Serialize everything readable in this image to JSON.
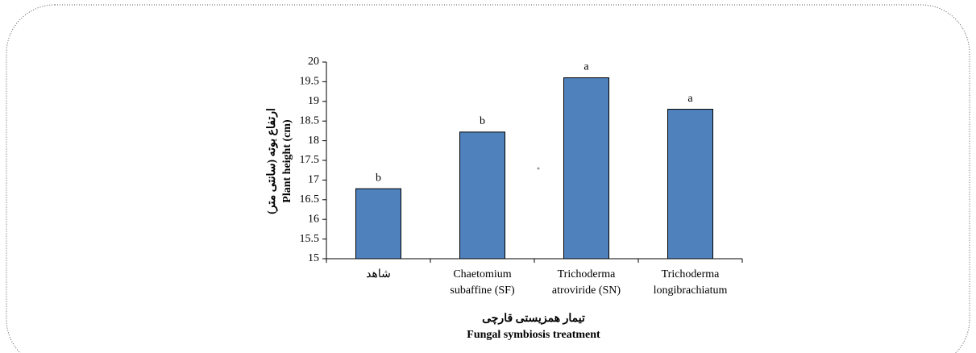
{
  "chart_data": {
    "type": "bar",
    "y_label_fa": "ارتفاع بوته (سانتی متر)",
    "y_label": "Plant height (cm)",
    "x_label_fa": "تیمار همزیستی قارچی",
    "x_label": "Fungal symbiosis treatment",
    "categories": [
      "شاهد",
      "Chaetomium\nsubaffine (SF)",
      "Trichoderma\natroviride (SN)",
      "Trichoderma\nlongibrachiatum"
    ],
    "values": [
      16.78,
      18.22,
      19.6,
      18.8
    ],
    "annotations": [
      "b",
      "b",
      "a",
      "a"
    ],
    "color": "#4f81bd",
    "ylim": [
      15,
      20
    ],
    "yticks": [
      15,
      15.5,
      16,
      16.5,
      17,
      17.5,
      18,
      18.5,
      19,
      19.5,
      20
    ]
  }
}
